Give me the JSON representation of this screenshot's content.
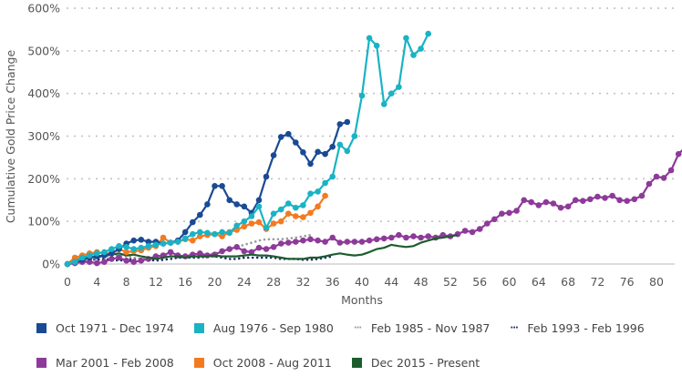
{
  "chart_data": {
    "type": "line",
    "title": "",
    "xlabel": "Months",
    "ylabel": "Cumulative Gold Price Change",
    "xlim": [
      0,
      84
    ],
    "ylim": [
      0,
      600
    ],
    "x_ticks": [
      0,
      4,
      8,
      12,
      16,
      20,
      24,
      28,
      32,
      36,
      40,
      44,
      48,
      52,
      56,
      60,
      64,
      68,
      72,
      76,
      80
    ],
    "x_tick_labels": [
      "0",
      "4",
      "8",
      "12",
      "16",
      "20",
      "24",
      "28",
      "32",
      "36",
      "40",
      "44",
      "48",
      "52",
      "56",
      "60",
      "64",
      "68",
      "72",
      "76",
      "80"
    ],
    "y_ticks": [
      0,
      100,
      200,
      300,
      400,
      500,
      600
    ],
    "y_tick_labels": [
      "0%",
      "100%",
      "200%",
      "300%",
      "400%",
      "500%",
      "600%"
    ],
    "grid": "horizontal-dotted",
    "legend_position": "bottom",
    "series": [
      {
        "name": "Oct 1971 - Dec 1974",
        "color": "#1a4a94",
        "style": "line-markers",
        "values": [
          0,
          5,
          10,
          15,
          18,
          20,
          25,
          35,
          48,
          55,
          57,
          52,
          52,
          48,
          50,
          55,
          75,
          98,
          115,
          140,
          183,
          183,
          150,
          140,
          135,
          120,
          150,
          205,
          255,
          298,
          305,
          285,
          262,
          235,
          263,
          258,
          275,
          328,
          333
        ]
      },
      {
        "name": "Aug 1976 - Sep 1980",
        "color": "#1ab3c4",
        "style": "line-markers",
        "values": [
          0,
          5,
          15,
          20,
          25,
          28,
          35,
          42,
          40,
          35,
          38,
          42,
          45,
          48,
          50,
          52,
          60,
          70,
          75,
          73,
          70,
          75,
          73,
          90,
          100,
          112,
          135,
          85,
          118,
          128,
          142,
          132,
          138,
          165,
          170,
          190,
          205,
          280,
          265,
          300,
          395,
          530,
          512,
          375,
          400,
          415,
          530,
          490,
          505,
          540
        ]
      },
      {
        "name": "Feb 1985 - Nov 1987",
        "color": "#9a9a9a",
        "style": "dotted",
        "values": [
          0,
          5,
          10,
          12,
          15,
          18,
          20,
          20,
          18,
          15,
          12,
          12,
          15,
          18,
          20,
          20,
          18,
          18,
          20,
          22,
          25,
          30,
          35,
          40,
          45,
          50,
          55,
          58,
          58,
          58,
          60,
          62,
          65,
          68
        ]
      },
      {
        "name": "Feb 1993 - Feb 1996",
        "color": "#1b2a6b",
        "style": "dotted",
        "values": [
          0,
          3,
          8,
          12,
          10,
          12,
          10,
          8,
          10,
          12,
          12,
          10,
          8,
          10,
          12,
          15,
          15,
          15,
          15,
          18,
          18,
          15,
          12,
          12,
          15,
          15,
          15,
          15,
          15,
          12,
          12,
          12,
          10,
          10,
          12,
          15,
          18
        ]
      },
      {
        "name": "Mar 2001 - Feb 2008",
        "color": "#8e3a9a",
        "style": "line-markers",
        "values": [
          0,
          2,
          5,
          5,
          2,
          5,
          12,
          15,
          8,
          5,
          8,
          12,
          18,
          20,
          28,
          20,
          18,
          22,
          25,
          20,
          22,
          30,
          35,
          40,
          30,
          28,
          38,
          35,
          40,
          48,
          50,
          52,
          55,
          58,
          55,
          52,
          62,
          50,
          52,
          52,
          52,
          55,
          58,
          60,
          62,
          68,
          62,
          65,
          62,
          65,
          62,
          68,
          65,
          70,
          78,
          75,
          82,
          95,
          105,
          118,
          120,
          125,
          150,
          145,
          138,
          145,
          142,
          132,
          135,
          150,
          148,
          152,
          158,
          155,
          160,
          150,
          148,
          152,
          160,
          188,
          205,
          202,
          220,
          258,
          275
        ]
      },
      {
        "name": "Oct 2008 - Aug 2011",
        "color": "#f47a20",
        "style": "line-markers",
        "values": [
          0,
          15,
          20,
          25,
          28,
          25,
          25,
          35,
          28,
          30,
          32,
          38,
          42,
          62,
          50,
          52,
          58,
          55,
          65,
          68,
          70,
          65,
          75,
          80,
          88,
          95,
          98,
          82,
          95,
          100,
          118,
          112,
          110,
          120,
          135,
          160
        ]
      },
      {
        "name": "Dec 2015 - Present",
        "color": "#1e5c2e",
        "style": "line",
        "values": [
          0,
          8,
          15,
          18,
          15,
          20,
          22,
          25,
          20,
          22,
          18,
          15,
          12,
          15,
          18,
          18,
          15,
          18,
          18,
          18,
          20,
          18,
          18,
          18,
          20,
          22,
          20,
          20,
          18,
          15,
          12,
          12,
          12,
          15,
          15,
          18,
          22,
          25,
          22,
          20,
          22,
          28,
          35,
          38,
          45,
          42,
          40,
          42,
          50,
          55,
          60,
          62,
          65,
          68
        ]
      }
    ]
  }
}
